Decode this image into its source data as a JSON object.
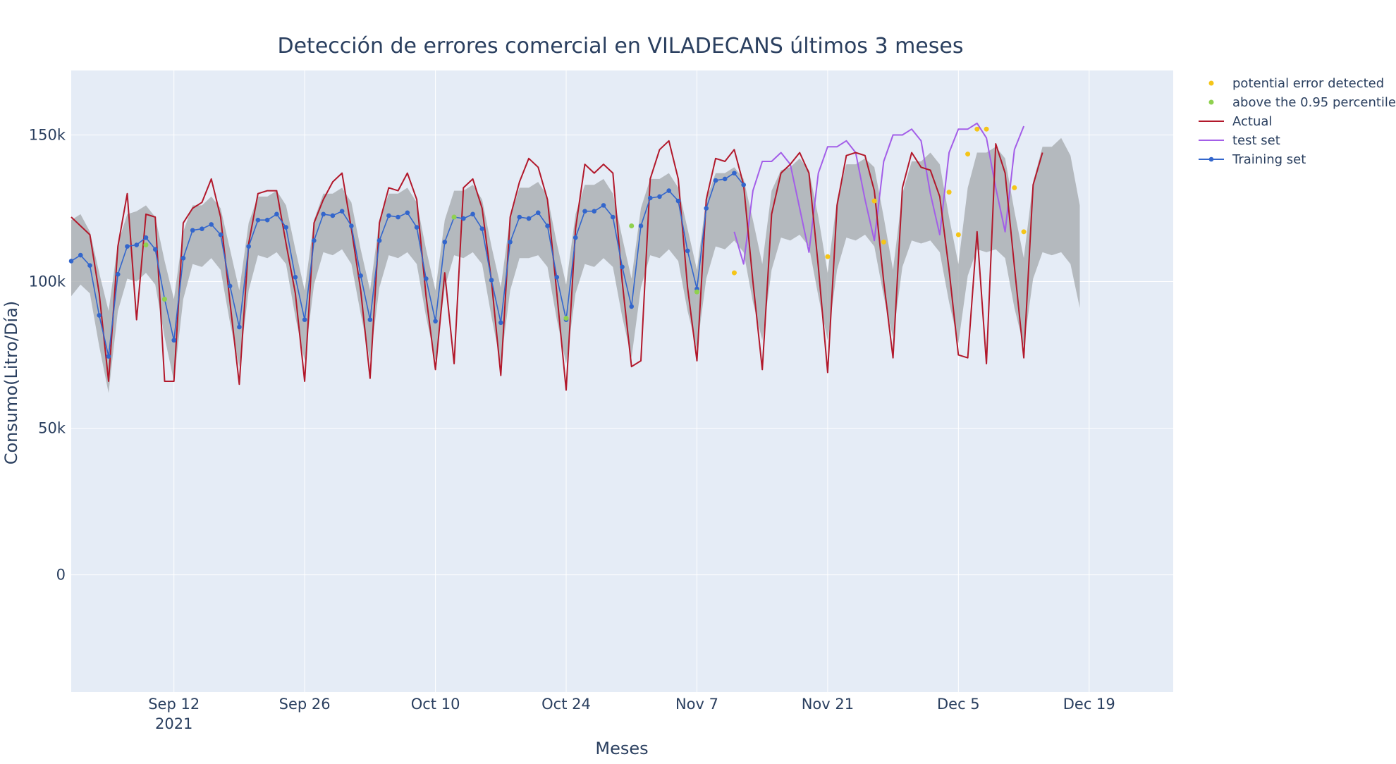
{
  "chart_data": {
    "type": "line",
    "title": "Detección de errores comercial en VILADECANS últimos 3 meses",
    "xlabel": "Meses",
    "ylabel": "Consumo(Litro/Día)",
    "x_range": [
      "2021-09-01",
      "2021-12-28"
    ],
    "ylim": [
      -40000,
      172000
    ],
    "x_ticks": [
      {
        "date": "2021-09-12",
        "label": "Sep 12",
        "sublabel": "2021"
      },
      {
        "date": "2021-09-26",
        "label": "Sep 26",
        "sublabel": ""
      },
      {
        "date": "2021-10-10",
        "label": "Oct 10",
        "sublabel": ""
      },
      {
        "date": "2021-10-24",
        "label": "Oct 24",
        "sublabel": ""
      },
      {
        "date": "2021-11-07",
        "label": "Nov 7",
        "sublabel": ""
      },
      {
        "date": "2021-11-21",
        "label": "Nov 21",
        "sublabel": ""
      },
      {
        "date": "2021-12-05",
        "label": "Dec 5",
        "sublabel": ""
      },
      {
        "date": "2021-12-19",
        "label": "Dec 19",
        "sublabel": ""
      }
    ],
    "y_ticks": [
      {
        "value": 0,
        "label": "0"
      },
      {
        "value": 50000,
        "label": "50k"
      },
      {
        "value": 100000,
        "label": "100k"
      },
      {
        "value": 150000,
        "label": "150k"
      }
    ],
    "grid": true,
    "legend_position": "top-right",
    "colors": {
      "plot_bg": "#e5ecf6",
      "grid": "#ffffff",
      "band": "#a8acb0",
      "actual": "#b2182b",
      "test": "#a35ee8",
      "training": "#3366cc",
      "potential": "#f5c518",
      "percentile": "#8fd14f",
      "text": "#2a3f5f"
    },
    "legend": [
      {
        "key": "potential",
        "label": "potential error detected",
        "style": "dot"
      },
      {
        "key": "percentile",
        "label": "above the 0.95 percentile",
        "style": "dot"
      },
      {
        "key": "actual",
        "label": "Actual",
        "style": "line"
      },
      {
        "key": "test",
        "label": "test set",
        "style": "line"
      },
      {
        "key": "training",
        "label": "Training set",
        "style": "line-marker"
      }
    ],
    "series": {
      "actual": {
        "start": "2021-09-01",
        "values": [
          122000,
          119000,
          116000,
          96000,
          66000,
          112000,
          130000,
          87000,
          123000,
          122000,
          66000,
          66000,
          120000,
          125000,
          127000,
          135000,
          122000,
          93000,
          65000,
          113000,
          130000,
          131000,
          131000,
          113000,
          96000,
          66000,
          120000,
          128000,
          134000,
          137000,
          118000,
          97000,
          67000,
          120000,
          132000,
          131000,
          137000,
          128000,
          95000,
          70000,
          103000,
          72000,
          132000,
          135000,
          125000,
          100000,
          68000,
          122000,
          134000,
          142000,
          139000,
          128000,
          96000,
          63000,
          118000,
          140000,
          137000,
          140000,
          137000,
          100000,
          71000,
          73000,
          135000,
          145000,
          148000,
          135000,
          98000,
          73000,
          128000,
          142000,
          141000,
          145000,
          133000,
          100000,
          70000,
          123000,
          137000,
          140000,
          144000,
          137000,
          105000,
          69000,
          126000,
          143000,
          144000,
          143000,
          131000,
          100000,
          74000,
          132000,
          144000,
          139000,
          138000,
          129000,
          104000,
          75000,
          74000,
          117000,
          72000,
          147000,
          137000,
          105000,
          74000,
          133000,
          144000
        ]
      },
      "test": {
        "start": "2021-11-11",
        "values": [
          117000,
          106000,
          131000,
          141000,
          141000,
          144000,
          140000,
          125000,
          110000,
          137000,
          146000,
          146000,
          148000,
          144000,
          128000,
          114000,
          141000,
          150000,
          150000,
          152000,
          148000,
          130000,
          116000,
          144000,
          152000,
          152000,
          154000,
          149000,
          132000,
          117000,
          145000,
          153000
        ]
      },
      "training": {
        "start": "2021-09-01",
        "values": [
          107000,
          109000,
          105500,
          88500,
          74500,
          102500,
          112000,
          112500,
          115000,
          111000,
          94000,
          80000,
          108000,
          117500,
          118000,
          119500,
          116000,
          98500,
          84500,
          112000,
          121000,
          121000,
          123000,
          118500,
          101500,
          87000,
          114000,
          123000,
          122500,
          124000,
          119000,
          102000,
          87000,
          114000,
          122500,
          122000,
          123500,
          118500,
          101000,
          86500,
          113500,
          122000,
          121500,
          123000,
          118000,
          100500,
          86000,
          113500,
          122000,
          121500,
          123500,
          119000,
          101500,
          87000,
          115000,
          124000,
          124000,
          126000,
          122000,
          105000,
          91500,
          119000,
          128500,
          129000,
          131000,
          127500,
          110500,
          97500,
          125000,
          134500,
          135000,
          137000,
          133000
        ]
      },
      "band": {
        "start": "2021-09-01",
        "upper": [
          121000,
          123000,
          117000,
          103000,
          90000,
          113000,
          123000,
          124000,
          126000,
          122000,
          107000,
          94000,
          117000,
          126000,
          126000,
          129000,
          125000,
          111000,
          97000,
          120000,
          129000,
          129000,
          131000,
          126000,
          111000,
          97000,
          121000,
          130000,
          130000,
          132000,
          127000,
          111000,
          97000,
          121000,
          130000,
          130000,
          132000,
          127000,
          111000,
          97000,
          121000,
          131000,
          131000,
          133000,
          128000,
          112000,
          98000,
          122000,
          132000,
          132000,
          134000,
          129000,
          113000,
          99000,
          123000,
          133000,
          133000,
          135000,
          130000,
          115000,
          101000,
          125000,
          135000,
          135000,
          137000,
          132000,
          118000,
          104000,
          128000,
          137000,
          137000,
          139000,
          135000,
          121000,
          106000,
          131000,
          138000,
          139000,
          142000,
          138000,
          122000,
          103000,
          128000,
          140000,
          140000,
          142000,
          139000,
          122000,
          104000,
          130000,
          141000,
          141000,
          144000,
          140000,
          122000,
          106000,
          132000,
          144000,
          144000,
          146000,
          142000,
          124000,
          108000,
          134000,
          146000,
          146000,
          149000,
          143000,
          126000
        ],
        "lower": [
          95000,
          99000,
          96000,
          78000,
          62000,
          90000,
          101000,
          100000,
          103000,
          99000,
          81000,
          66000,
          94000,
          106000,
          105000,
          108000,
          104000,
          86000,
          71000,
          97000,
          109000,
          108000,
          110000,
          106000,
          88000,
          73000,
          99000,
          110000,
          109000,
          111000,
          106000,
          89000,
          73000,
          98000,
          109000,
          108000,
          110000,
          106000,
          88000,
          73000,
          98000,
          109000,
          108000,
          110000,
          106000,
          88000,
          72000,
          97000,
          108000,
          108000,
          109000,
          105000,
          87000,
          72000,
          96000,
          106000,
          105000,
          108000,
          105000,
          88000,
          74000,
          98000,
          109000,
          108000,
          111000,
          107000,
          90000,
          77000,
          101000,
          112000,
          111000,
          114000,
          110000,
          93000,
          80000,
          104000,
          115000,
          114000,
          116000,
          112000,
          95000,
          80000,
          104000,
          115000,
          114000,
          116000,
          112000,
          95000,
          81000,
          105000,
          114000,
          113000,
          114000,
          110000,
          93000,
          79000,
          102000,
          111000,
          110000,
          111000,
          108000,
          91000,
          78000,
          101000,
          110000,
          109000,
          110000,
          106000,
          91000
        ]
      }
    },
    "markers": {
      "potential": [
        {
          "date": "2021-11-11",
          "value": 103000
        },
        {
          "date": "2021-11-21",
          "value": 108500
        },
        {
          "date": "2021-11-26",
          "value": 127500
        },
        {
          "date": "2021-11-27",
          "value": 113500
        },
        {
          "date": "2021-12-04",
          "value": 130500
        },
        {
          "date": "2021-12-05",
          "value": 116000
        },
        {
          "date": "2021-12-06",
          "value": 143500
        },
        {
          "date": "2021-12-07",
          "value": 152000
        },
        {
          "date": "2021-12-08",
          "value": 152000
        },
        {
          "date": "2021-12-11",
          "value": 132000
        },
        {
          "date": "2021-12-12",
          "value": 117000
        }
      ],
      "percentile": [
        {
          "date": "2021-09-09",
          "value": 112500
        },
        {
          "date": "2021-09-11",
          "value": 94000
        },
        {
          "date": "2021-10-12",
          "value": 122000
        },
        {
          "date": "2021-10-24",
          "value": 87500
        },
        {
          "date": "2021-10-31",
          "value": 119000
        },
        {
          "date": "2021-11-07",
          "value": 96500
        }
      ]
    }
  }
}
